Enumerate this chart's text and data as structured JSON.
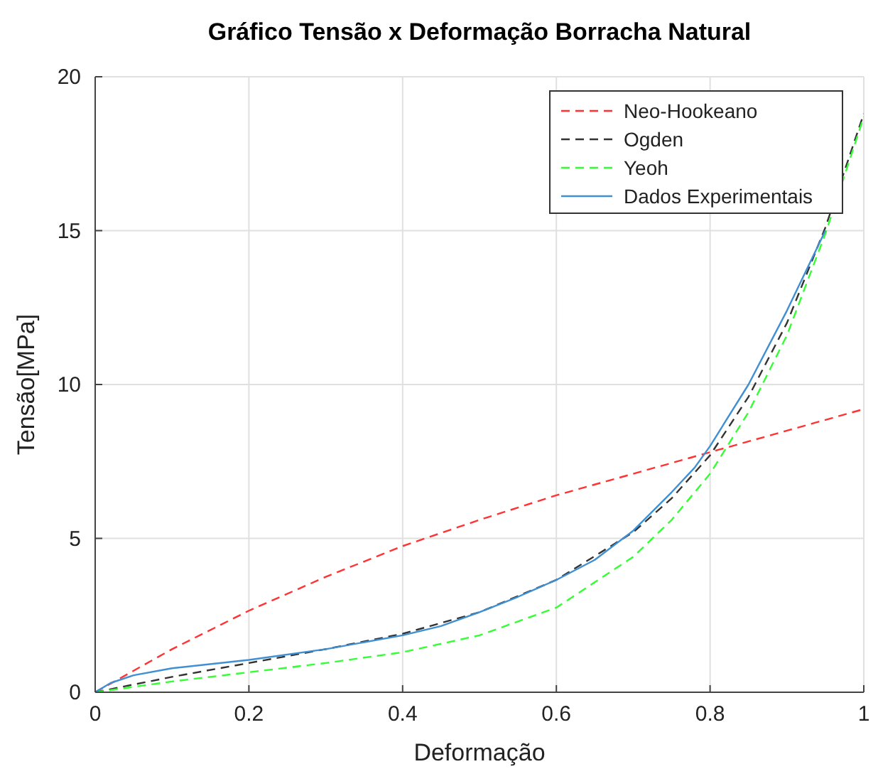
{
  "chart_data": {
    "type": "line",
    "title": "Gráfico Tensão x Deformação Borracha Natural",
    "xlabel": "Deformação",
    "ylabel": "Tensão[MPa]",
    "xlim": [
      0,
      1
    ],
    "ylim": [
      0,
      20
    ],
    "xticks": [
      0,
      0.2,
      0.4,
      0.6,
      0.8,
      1
    ],
    "yticks": [
      0,
      5,
      10,
      15,
      20
    ],
    "grid": true,
    "legend": "top right",
    "marker": "none",
    "series": [
      {
        "name": "Neo-Hookeano",
        "color": "#ff3333",
        "line_style": "dashed",
        "x": [
          0,
          0.1,
          0.2,
          0.3,
          0.4,
          0.5,
          0.6,
          0.7,
          0.8,
          0.9,
          1
        ],
        "values": [
          0,
          1.4,
          2.65,
          3.75,
          4.75,
          5.6,
          6.4,
          7.1,
          7.8,
          8.5,
          9.2
        ]
      },
      {
        "name": "Ogden",
        "color": "#333333",
        "line_style": "dashed",
        "x": [
          0,
          0.1,
          0.2,
          0.3,
          0.4,
          0.5,
          0.6,
          0.7,
          0.75,
          0.8,
          0.85,
          0.9,
          0.95,
          1
        ],
        "values": [
          0,
          0.5,
          0.95,
          1.4,
          1.9,
          2.6,
          3.65,
          5.2,
          6.3,
          7.7,
          9.6,
          12,
          15.1,
          18.8
        ]
      },
      {
        "name": "Yeoh",
        "color": "#33ff33",
        "line_style": "dashed",
        "x": [
          0,
          0.1,
          0.2,
          0.3,
          0.4,
          0.5,
          0.6,
          0.7,
          0.75,
          0.8,
          0.85,
          0.9,
          0.95,
          1
        ],
        "values": [
          0,
          0.35,
          0.65,
          0.95,
          1.3,
          1.85,
          2.75,
          4.4,
          5.6,
          7.1,
          9.1,
          11.6,
          14.9,
          18.7
        ]
      },
      {
        "name": "Dados Experimentais",
        "color": "#3f8fd2",
        "line_style": "solid",
        "x": [
          0,
          0.02,
          0.05,
          0.1,
          0.2,
          0.3,
          0.4,
          0.45,
          0.5,
          0.55,
          0.6,
          0.65,
          0.7,
          0.75,
          0.78,
          0.8,
          0.85,
          0.9,
          0.95
        ],
        "values": [
          0,
          0.3,
          0.55,
          0.78,
          1.05,
          1.4,
          1.85,
          2.15,
          2.6,
          3.1,
          3.65,
          4.3,
          5.25,
          6.5,
          7.3,
          8.0,
          10.0,
          12.4,
          15.0
        ]
      }
    ]
  }
}
